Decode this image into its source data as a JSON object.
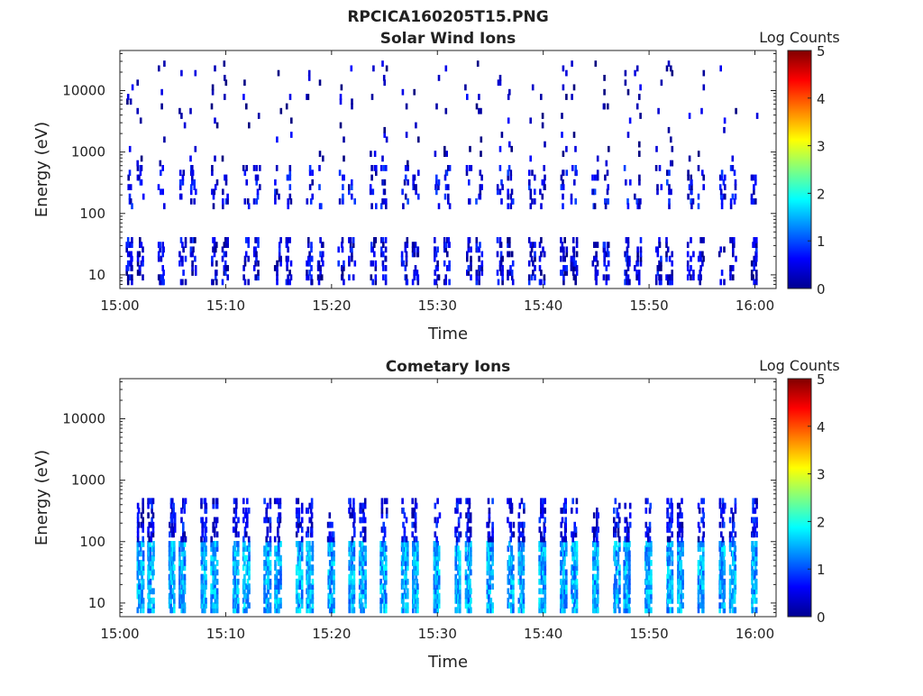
{
  "figure": {
    "title": "RPCICA160205T15.PNG"
  },
  "chart_data": [
    {
      "type": "heatmap",
      "title": "Solar Wind Ions",
      "xlabel": "Time",
      "ylabel": "Energy (eV)",
      "x_ticks": [
        "15:00",
        "15:10",
        "15:20",
        "15:30",
        "15:40",
        "15:50",
        "16:00"
      ],
      "x_range": [
        "15:00",
        "16:02"
      ],
      "y_scale": "log",
      "y_ticks": [
        "10",
        "100",
        "1000",
        "10000"
      ],
      "y_range": [
        6,
        45000
      ],
      "colorbar": {
        "label": "Log Counts",
        "ticks": [
          "0",
          "1",
          "2",
          "3",
          "4",
          "5"
        ],
        "range": [
          0,
          5
        ],
        "colormap": "jet"
      },
      "pulse_times": [
        "15:01",
        "15:02",
        "15:04",
        "15:06",
        "15:07",
        "15:09",
        "15:10",
        "15:12",
        "15:13",
        "15:15",
        "15:16",
        "15:18",
        "15:19",
        "15:21",
        "15:22",
        "15:24",
        "15:25",
        "15:27",
        "15:28",
        "15:30",
        "15:31",
        "15:33",
        "15:34",
        "15:36",
        "15:37",
        "15:39",
        "15:40",
        "15:42",
        "15:43",
        "15:45",
        "15:46",
        "15:48",
        "15:49",
        "15:51",
        "15:52",
        "15:54",
        "15:55",
        "15:57",
        "15:58",
        "16:00"
      ],
      "bands": [
        {
          "emin": 7,
          "emax": 40,
          "density": 0.35,
          "level": 0.4
        },
        {
          "emin": 120,
          "emax": 600,
          "density": 0.2,
          "level": 0.5
        },
        {
          "emin": 600,
          "emax": 30000,
          "density": 0.04,
          "level": 0.2
        }
      ]
    },
    {
      "type": "heatmap",
      "title": "Cometary Ions",
      "xlabel": "Time",
      "ylabel": "Energy (eV)",
      "x_ticks": [
        "15:00",
        "15:10",
        "15:20",
        "15:30",
        "15:40",
        "15:50",
        "16:00"
      ],
      "x_range": [
        "15:00",
        "16:02"
      ],
      "y_scale": "log",
      "y_ticks": [
        "10",
        "100",
        "1000",
        "10000"
      ],
      "y_range": [
        6,
        45000
      ],
      "colorbar": {
        "label": "Log Counts",
        "ticks": [
          "0",
          "1",
          "2",
          "3",
          "4",
          "5"
        ],
        "range": [
          0,
          5
        ],
        "colormap": "jet"
      },
      "pulse_times": [
        "15:02",
        "15:03",
        "15:05",
        "15:06",
        "15:08",
        "15:09",
        "15:11",
        "15:12",
        "15:14",
        "15:15",
        "15:17",
        "15:18",
        "15:20",
        "15:22",
        "15:23",
        "15:25",
        "15:27",
        "15:28",
        "15:30",
        "15:32",
        "15:33",
        "15:35",
        "15:37",
        "15:38",
        "15:40",
        "15:42",
        "15:43",
        "15:45",
        "15:47",
        "15:48",
        "15:50",
        "15:52",
        "15:53",
        "15:55",
        "15:57",
        "15:58",
        "16:00"
      ],
      "bands": [
        {
          "emin": 7,
          "emax": 100,
          "density": 0.75,
          "level": 1.4
        },
        {
          "emin": 100,
          "emax": 500,
          "density": 0.35,
          "level": 0.5
        }
      ]
    }
  ]
}
